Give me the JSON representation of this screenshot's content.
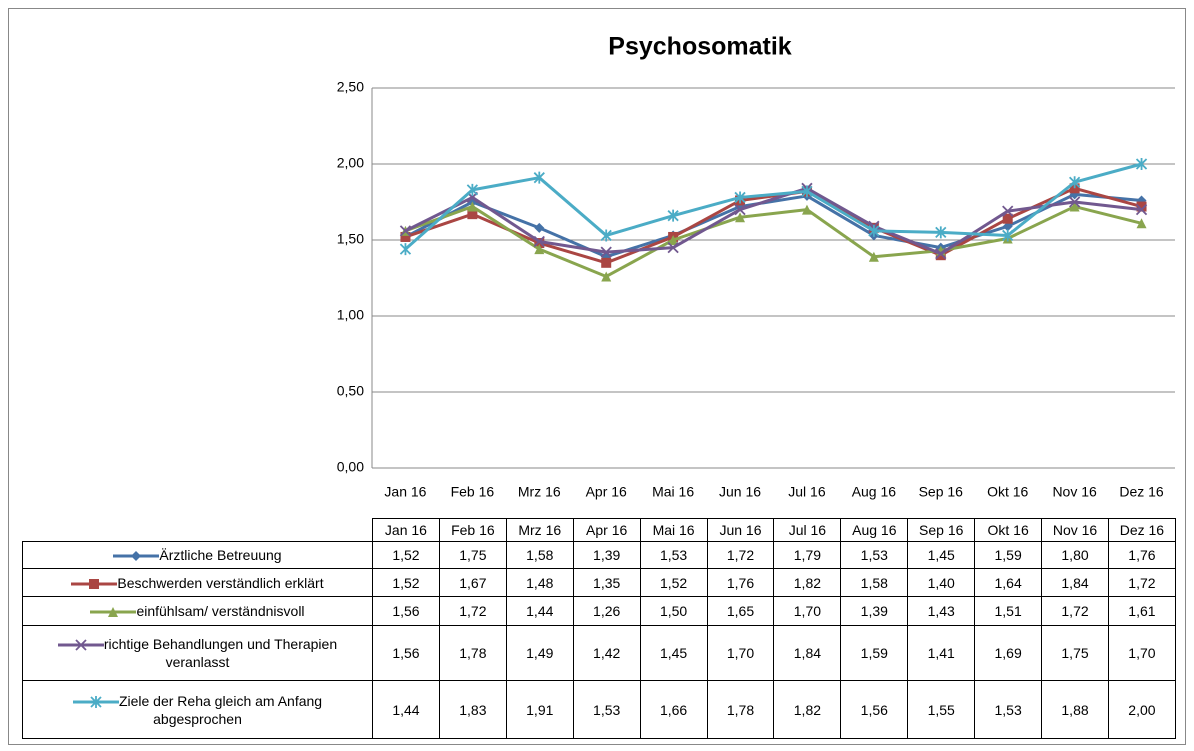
{
  "chart_data": {
    "type": "line",
    "title": "Psychosomatik",
    "categories": [
      "Jan 16",
      "Feb 16",
      "Mrz 16",
      "Apr 16",
      "Mai 16",
      "Jun 16",
      "Jul 16",
      "Aug 16",
      "Sep 16",
      "Okt 16",
      "Nov 16",
      "Dez 16"
    ],
    "series": [
      {
        "name": "Ärztliche Betreuung",
        "color": "#4572a7",
        "marker": "diamond",
        "values": [
          1.52,
          1.75,
          1.58,
          1.39,
          1.53,
          1.72,
          1.79,
          1.53,
          1.45,
          1.59,
          1.8,
          1.76
        ],
        "value_labels": [
          "1,52",
          "1,75",
          "1,58",
          "1,39",
          "1,53",
          "1,72",
          "1,79",
          "1,53",
          "1,45",
          "1,59",
          "1,80",
          "1,76"
        ]
      },
      {
        "name": "Beschwerden verständlich erklärt",
        "color": "#aa4643",
        "marker": "square",
        "values": [
          1.52,
          1.67,
          1.48,
          1.35,
          1.52,
          1.76,
          1.82,
          1.58,
          1.4,
          1.64,
          1.84,
          1.72
        ],
        "value_labels": [
          "1,52",
          "1,67",
          "1,48",
          "1,35",
          "1,52",
          "1,76",
          "1,82",
          "1,58",
          "1,40",
          "1,64",
          "1,84",
          "1,72"
        ]
      },
      {
        "name": "einfühlsam/ verständnisvoll",
        "color": "#89a54e",
        "marker": "triangle",
        "values": [
          1.56,
          1.72,
          1.44,
          1.26,
          1.5,
          1.65,
          1.7,
          1.39,
          1.43,
          1.51,
          1.72,
          1.61
        ],
        "value_labels": [
          "1,56",
          "1,72",
          "1,44",
          "1,26",
          "1,50",
          "1,65",
          "1,70",
          "1,39",
          "1,43",
          "1,51",
          "1,72",
          "1,61"
        ]
      },
      {
        "name": "richtige Behandlungen und Therapien veranlasst",
        "color": "#71588f",
        "marker": "x",
        "values": [
          1.56,
          1.78,
          1.49,
          1.42,
          1.45,
          1.7,
          1.84,
          1.59,
          1.41,
          1.69,
          1.75,
          1.7
        ],
        "value_labels": [
          "1,56",
          "1,78",
          "1,49",
          "1,42",
          "1,45",
          "1,70",
          "1,84",
          "1,59",
          "1,41",
          "1,69",
          "1,75",
          "1,70"
        ]
      },
      {
        "name": "Ziele der Reha gleich am Anfang abgesprochen",
        "color": "#4bacc6",
        "marker": "star",
        "values": [
          1.44,
          1.83,
          1.91,
          1.53,
          1.66,
          1.78,
          1.82,
          1.56,
          1.55,
          1.53,
          1.88,
          2.0
        ],
        "value_labels": [
          "1,44",
          "1,83",
          "1,91",
          "1,53",
          "1,66",
          "1,78",
          "1,82",
          "1,56",
          "1,55",
          "1,53",
          "1,88",
          "2,00"
        ]
      }
    ],
    "ylim": [
      0,
      2.5
    ],
    "yticks": [
      {
        "value": 0,
        "label": "0,00"
      },
      {
        "value": 0.5,
        "label": "0,50"
      },
      {
        "value": 1,
        "label": "1,00"
      },
      {
        "value": 1.5,
        "label": "1,50"
      },
      {
        "value": 2,
        "label": "2,00"
      },
      {
        "value": 2.5,
        "label": "2,50"
      }
    ],
    "grid": true
  }
}
